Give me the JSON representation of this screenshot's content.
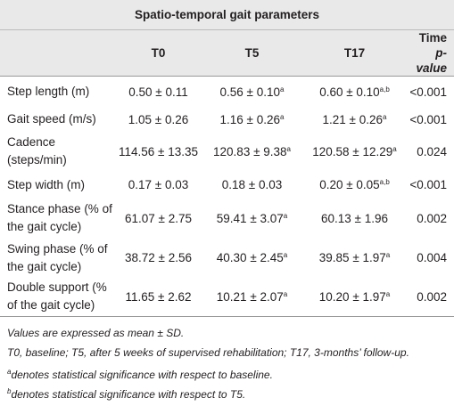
{
  "table": {
    "title": "Spatio-temporal gait parameters",
    "header": [
      {
        "text": "T0"
      },
      {
        "text": "T5"
      },
      {
        "text": "T17"
      },
      {
        "line1": "Time",
        "line2": "p-value"
      }
    ],
    "rows": [
      {
        "label": "Step length (m)",
        "cells": [
          {
            "text": "0.50 ± 0.11"
          },
          {
            "text": "0.56 ± 0.10",
            "sup": "a"
          },
          {
            "text": "0.60 ± 0.10",
            "sup": "a,b"
          },
          {
            "text": "<0.001"
          }
        ]
      },
      {
        "label": "Gait speed (m/s)",
        "cells": [
          {
            "text": "1.05 ± 0.26"
          },
          {
            "text": "1.16 ± 0.26",
            "sup": "a"
          },
          {
            "text": "1.21 ± 0.26",
            "sup": "a"
          },
          {
            "text": "<0.001"
          }
        ]
      },
      {
        "label": "Cadence (steps/min)",
        "cells": [
          {
            "text": "114.56 ± 13.35"
          },
          {
            "text": "120.83 ± 9.38",
            "sup": "a"
          },
          {
            "text": "120.58 ± 12.29",
            "sup": "a"
          },
          {
            "text": "0.024"
          }
        ]
      },
      {
        "label": "Step width (m)",
        "cells": [
          {
            "text": "0.17 ± 0.03"
          },
          {
            "text": "0.18 ± 0.03"
          },
          {
            "text": "0.20 ± 0.05",
            "sup": "a,b"
          },
          {
            "text": "<0.001"
          }
        ]
      },
      {
        "label": "Stance phase (% of the gait cycle)",
        "cells": [
          {
            "text": "61.07 ± 2.75"
          },
          {
            "text": "59.41 ± 3.07",
            "sup": "a"
          },
          {
            "text": "60.13 ± 1.96"
          },
          {
            "text": "0.002"
          }
        ]
      },
      {
        "label": "Swing phase (% of the gait cycle)",
        "cells": [
          {
            "text": "38.72 ± 2.56"
          },
          {
            "text": "40.30 ± 2.45",
            "sup": "a"
          },
          {
            "text": "39.85 ± 1.97",
            "sup": "a"
          },
          {
            "text": "0.004"
          }
        ]
      },
      {
        "label": "Double support (% of the gait cycle)",
        "cells": [
          {
            "text": "11.65 ± 2.62"
          },
          {
            "text": "10.21 ± 2.07",
            "sup": "a"
          },
          {
            "text": "10.20 ± 1.97",
            "sup": "a"
          },
          {
            "text": "0.002"
          }
        ]
      }
    ],
    "footnotes": [
      {
        "text": "Values are expressed as mean ± SD."
      },
      {
        "text": "T0, baseline; T5, after 5 weeks of supervised rehabilitation; T17, 3-months’ follow-up."
      },
      {
        "sup": "a",
        "text": "denotes statistical significance with respect to baseline."
      },
      {
        "sup": "b",
        "text": "denotes statistical significance with respect to T5."
      }
    ]
  }
}
